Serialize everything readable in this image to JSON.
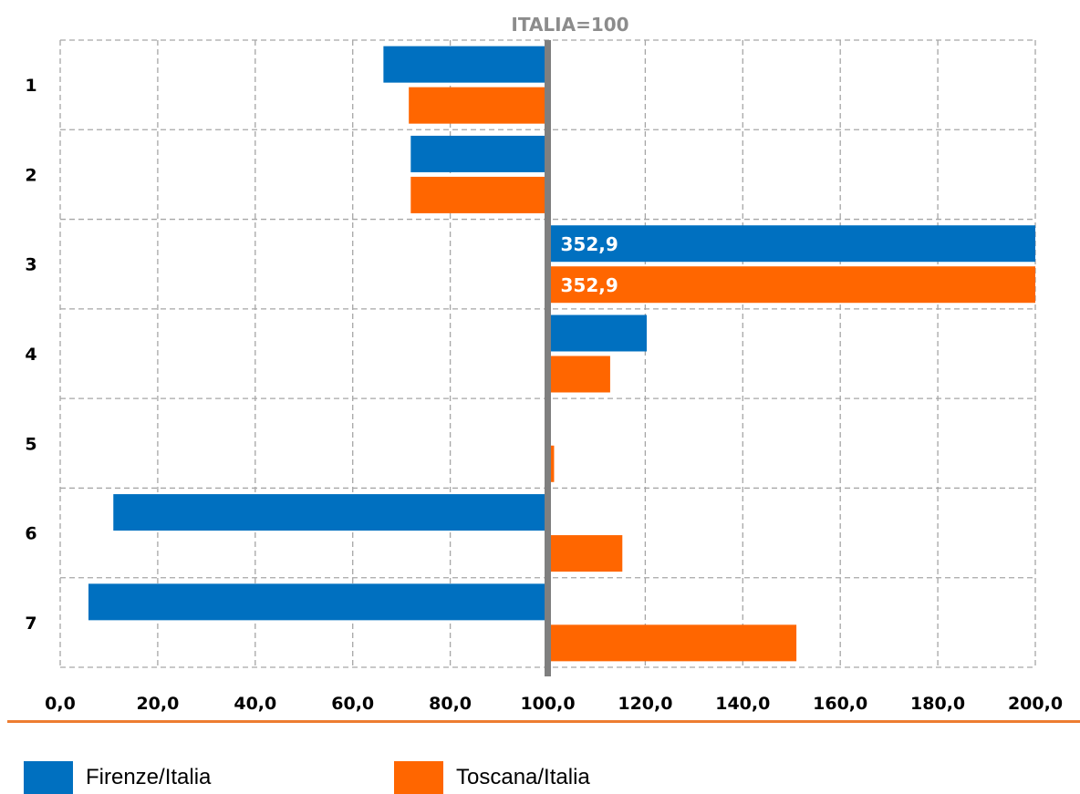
{
  "chart_data": {
    "type": "bar",
    "orientation": "horizontal",
    "reference_label": "ITALIA=100",
    "reference_value": 100,
    "categories": [
      "1",
      "2",
      "3",
      "4",
      "5",
      "6",
      "7"
    ],
    "series": [
      {
        "name": "Firenze/Italia",
        "color": "#0070c0",
        "values": [
          66.3,
          71.9,
          352.9,
          120.3,
          99.6,
          10.9,
          5.8
        ],
        "data_labels": [
          "",
          "",
          "352,9",
          "",
          "",
          "",
          ""
        ]
      },
      {
        "name": "Toscana/Italia",
        "color": "#ff6600",
        "values": [
          71.5,
          71.9,
          352.9,
          112.8,
          101.3,
          115.3,
          151.0
        ],
        "data_labels": [
          "",
          "",
          "352,9",
          "",
          "",
          "",
          ""
        ]
      }
    ],
    "x_ticks": [
      "0,0",
      "20,0",
      "40,0",
      "60,0",
      "80,0",
      "100,0",
      "120,0",
      "140,0",
      "160,0",
      "180,0",
      "200,0"
    ],
    "xlim": [
      0,
      200
    ],
    "grid": true,
    "legend_position": "bottom"
  }
}
